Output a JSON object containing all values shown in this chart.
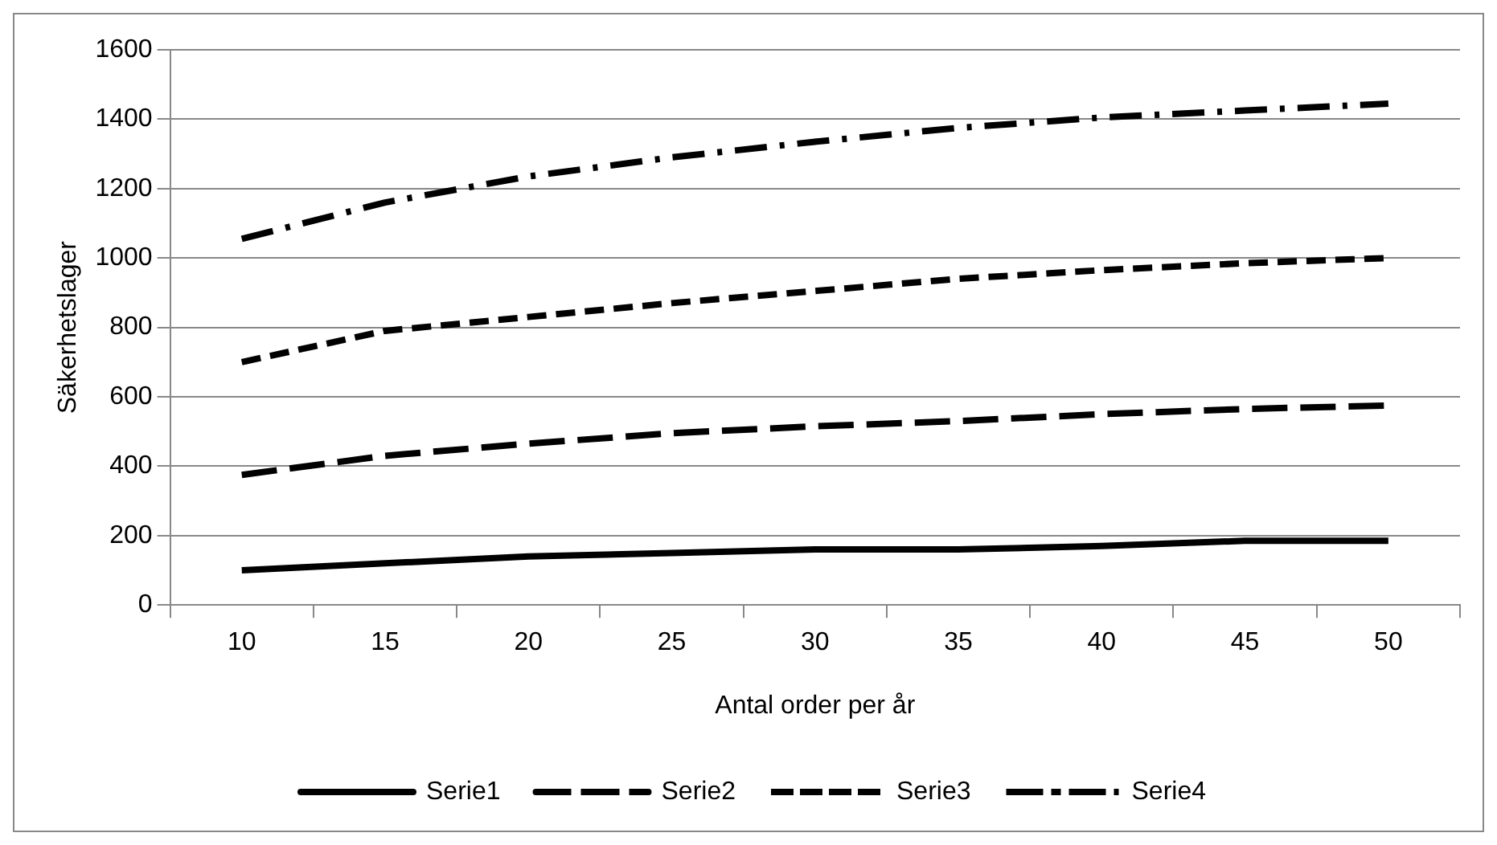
{
  "chart_data": {
    "type": "line",
    "xlabel": "Antal order per år",
    "ylabel": "Säkerhetslager",
    "categories": [
      "10",
      "15",
      "20",
      "25",
      "30",
      "35",
      "40",
      "45",
      "50"
    ],
    "series": [
      {
        "name": "Serie1",
        "color": "#000000",
        "line_style": "solid",
        "values": [
          100,
          120,
          140,
          150,
          160,
          160,
          170,
          185,
          185
        ]
      },
      {
        "name": "Serie2",
        "color": "#000000",
        "line_style": "dashed",
        "values": [
          375,
          430,
          465,
          495,
          515,
          530,
          550,
          565,
          575
        ]
      },
      {
        "name": "Serie3",
        "color": "#000000",
        "line_style": "dashed",
        "values": [
          700,
          790,
          830,
          870,
          905,
          940,
          965,
          985,
          1000
        ]
      },
      {
        "name": "Serie4",
        "color": "#000000",
        "line_style": "dashed",
        "values": [
          1055,
          1160,
          1235,
          1290,
          1335,
          1375,
          1405,
          1425,
          1445
        ]
      }
    ],
    "ylim": [
      0,
      1600
    ],
    "yticks": [
      0,
      200,
      400,
      600,
      800,
      1000,
      1200,
      1400,
      1600
    ],
    "grid": "y",
    "legend": "bottom",
    "marker": "none"
  }
}
